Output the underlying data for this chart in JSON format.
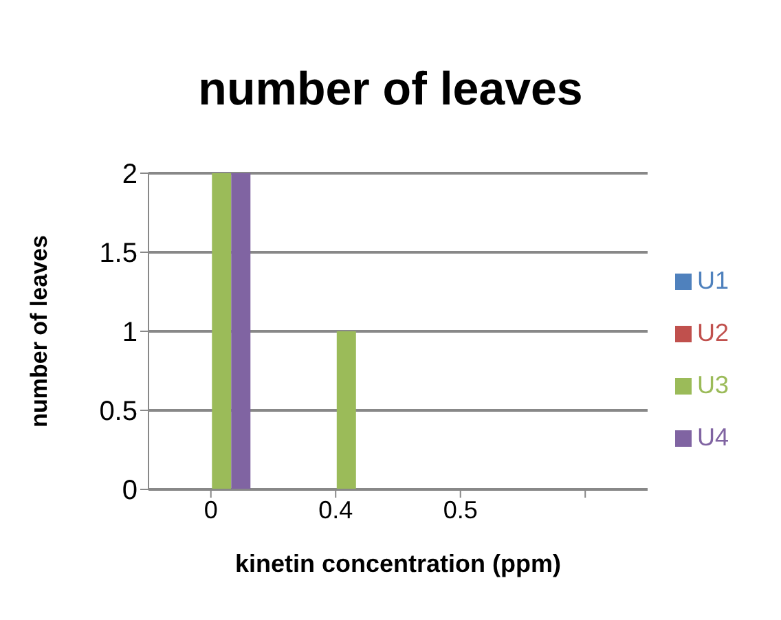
{
  "chart_data": {
    "type": "bar",
    "title": "number of leaves",
    "xlabel": "kinetin concentration (ppm)",
    "ylabel": "number of leaves",
    "categories": [
      "0",
      "0.4",
      "0.5",
      null
    ],
    "series": [
      {
        "name": "U1",
        "color": "#4f81bd",
        "values": [
          0,
          0,
          0,
          null
        ]
      },
      {
        "name": "U2",
        "color": "#c0504d",
        "values": [
          0,
          0,
          0,
          null
        ]
      },
      {
        "name": "U3",
        "color": "#9bbb59",
        "values": [
          2,
          1,
          0,
          null
        ]
      },
      {
        "name": "U4",
        "color": "#8064a2",
        "values": [
          2,
          0,
          0,
          null
        ]
      }
    ],
    "ylim": [
      0,
      2
    ],
    "yticks": [
      0,
      0.5,
      1,
      1.5,
      2
    ],
    "grid": "y",
    "legend": "right"
  }
}
